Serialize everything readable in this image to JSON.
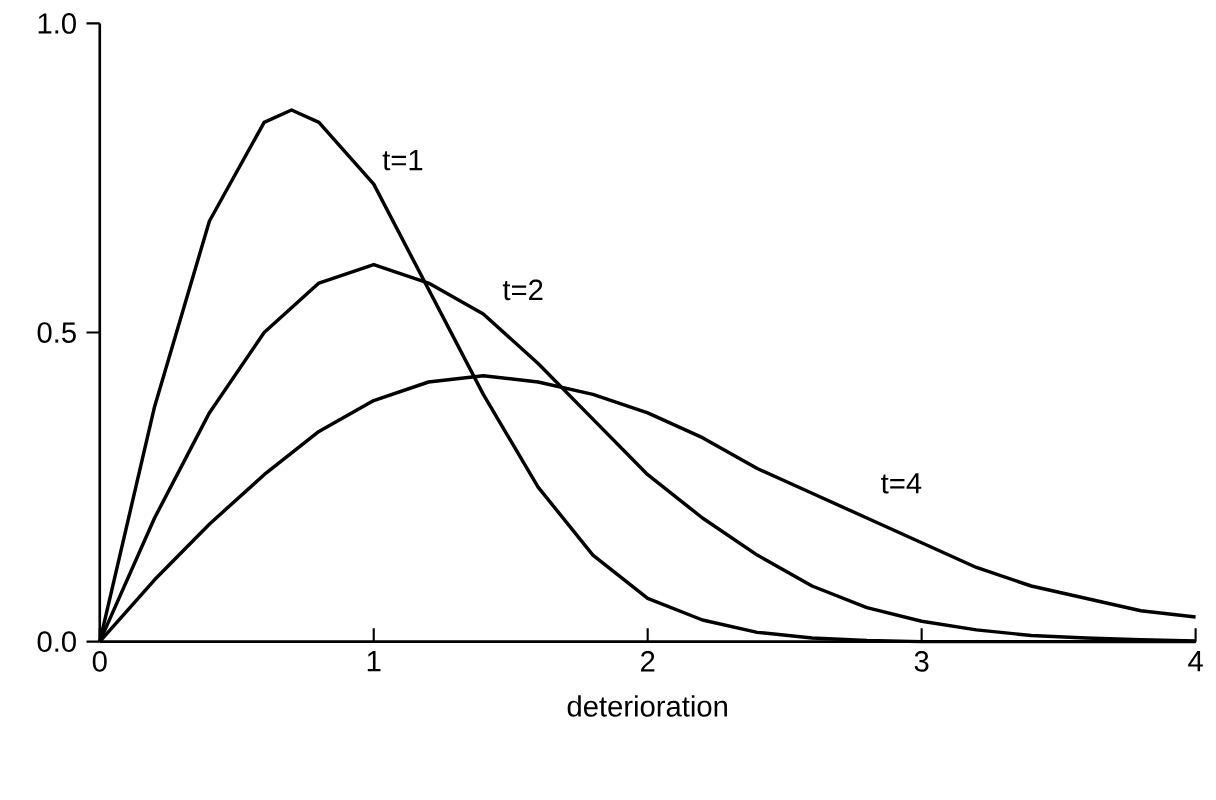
{
  "chart_data": {
    "type": "line",
    "xlabel": "deterioration",
    "xlim": [
      0,
      4
    ],
    "ylim": [
      0,
      1
    ],
    "xticks": [
      0,
      1,
      2,
      3,
      4
    ],
    "yticks": [
      {
        "value": 0,
        "label": "0.0"
      },
      {
        "value": 0.5,
        "label": "0.5"
      },
      {
        "value": 1,
        "label": "1.0"
      }
    ],
    "x": [
      0,
      0.2,
      0.4,
      0.6,
      0.8,
      1.0,
      1.2,
      1.4,
      1.6,
      1.8,
      2.0,
      2.2,
      2.4,
      2.6,
      2.8,
      3.0,
      3.2,
      3.4,
      3.6,
      3.8,
      4.0
    ],
    "series": [
      {
        "name": "t=1",
        "color": "#000000",
        "x": [
          0,
          0.2,
          0.4,
          0.6,
          0.7,
          0.8,
          1.0,
          1.2,
          1.4,
          1.6,
          1.8,
          2.0,
          2.2,
          2.4,
          2.6,
          2.8,
          3.0,
          3.2,
          3.4,
          3.6,
          3.8,
          4.0
        ],
        "values": [
          0,
          0.38,
          0.68,
          0.84,
          0.86,
          0.84,
          0.74,
          0.57,
          0.4,
          0.25,
          0.14,
          0.07,
          0.035,
          0.015,
          0.006,
          0.002,
          0,
          0,
          0,
          0,
          0,
          0
        ]
      },
      {
        "name": "t=2",
        "color": "#000000",
        "values": [
          0,
          0.2,
          0.37,
          0.5,
          0.58,
          0.61,
          0.58,
          0.53,
          0.45,
          0.36,
          0.27,
          0.2,
          0.14,
          0.09,
          0.055,
          0.033,
          0.019,
          0.01,
          0.006,
          0.003,
          0.001
        ]
      },
      {
        "name": "t=4",
        "color": "#000000",
        "values": [
          0,
          0.1,
          0.19,
          0.27,
          0.34,
          0.39,
          0.42,
          0.43,
          0.42,
          0.4,
          0.37,
          0.33,
          0.28,
          0.24,
          0.2,
          0.16,
          0.12,
          0.09,
          0.07,
          0.05,
          0.04
        ]
      }
    ]
  }
}
